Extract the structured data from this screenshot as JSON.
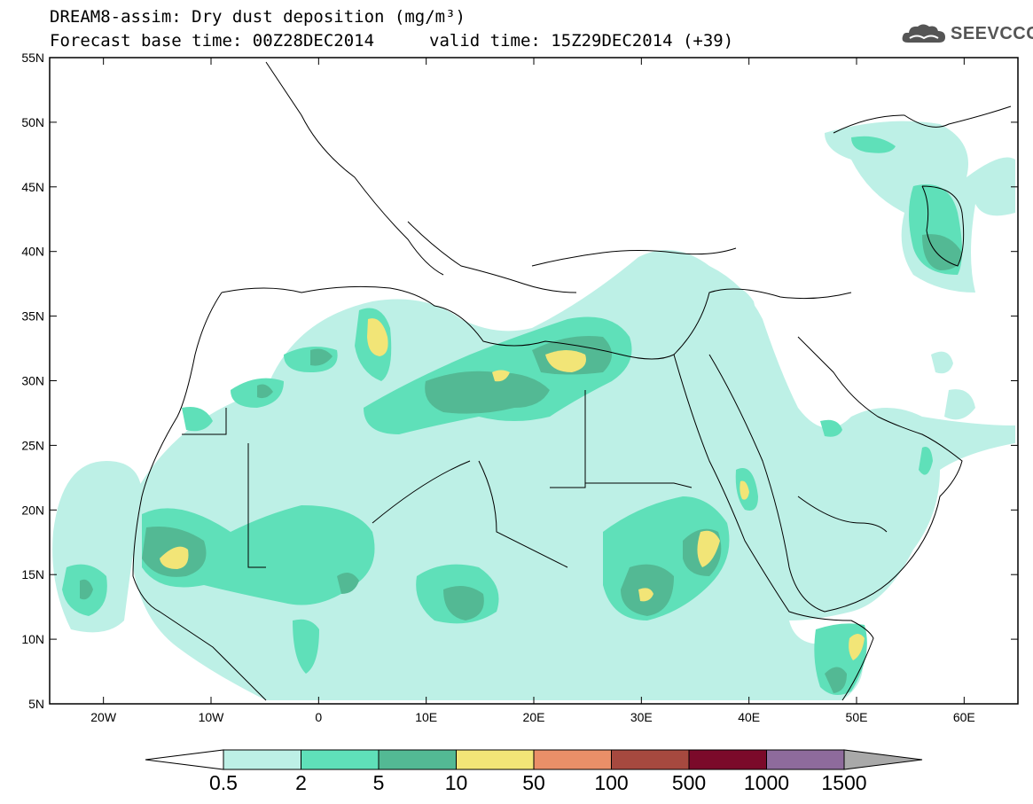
{
  "header": {
    "title": "DREAM8-assim: Dry dust deposition (mg/m³)",
    "base_time": "Forecast base time: 00Z28DEC2014",
    "valid_time": "valid time: 15Z29DEC2014 (+39)"
  },
  "logo": {
    "text": "SEEVCCC",
    "icon": "cloud-icon"
  },
  "map": {
    "lat_labels": [
      "55N",
      "50N",
      "45N",
      "40N",
      "35N",
      "30N",
      "25N",
      "20N",
      "15N",
      "10N",
      "5N"
    ],
    "lon_labels": [
      "20W",
      "10W",
      "0",
      "10E",
      "20E",
      "30E",
      "40E",
      "50E",
      "60E"
    ],
    "lon_range": [
      -25,
      65
    ],
    "lat_range": [
      5,
      55
    ]
  },
  "colorbar": {
    "labels": [
      "0.5",
      "2",
      "5",
      "10",
      "50",
      "100",
      "500",
      "1000",
      "1500"
    ],
    "colors": [
      "#bdf0e6",
      "#5fe0b9",
      "#53b994",
      "#f2e577",
      "#ea8f68",
      "#a6493f",
      "#7b0a2a",
      "#8e6b9c"
    ],
    "under_color": "#ffffff",
    "over_color": "#a9a9a9"
  },
  "legend_colors": {
    "c05": "#bdf0e6",
    "c2": "#5fe0b9",
    "c5": "#53b994",
    "c10": "#f2e577"
  }
}
